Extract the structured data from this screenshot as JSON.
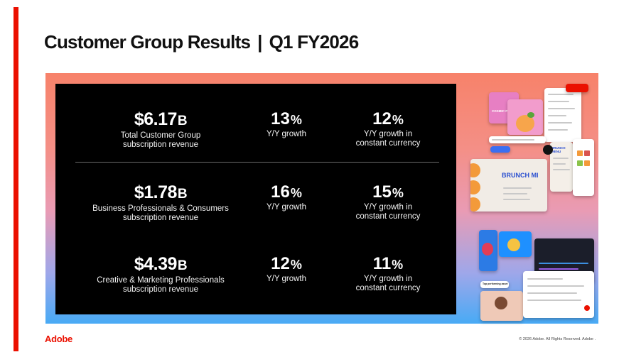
{
  "title": {
    "main": "Customer Group Results",
    "separator": "|",
    "period": "Q1 FY2026"
  },
  "rows": [
    {
      "amount": "$6.17",
      "unit": "B",
      "label_line1": "Total Customer Group",
      "label_line2": "subscription revenue",
      "yy_value": "13",
      "yy_label": "Y/Y growth",
      "cc_value": "12",
      "cc_label_line1": "Y/Y growth in",
      "cc_label_line2": "constant currency"
    },
    {
      "amount": "$1.78",
      "unit": "B",
      "label_line1": "Business Professionals & Consumers",
      "label_line2": "subscription revenue",
      "yy_value": "16",
      "yy_label": "Y/Y growth",
      "cc_value": "15",
      "cc_label_line1": "Y/Y growth in",
      "cc_label_line2": "constant currency"
    },
    {
      "amount": "$4.39",
      "unit": "B",
      "label_line1": "Creative & Marketing Professionals",
      "label_line2": "subscription revenue",
      "yy_value": "12",
      "yy_label": "Y/Y growth",
      "cc_value": "11",
      "cc_label_line1": "Y/Y growth in",
      "cc_label_line2": "constant currency"
    }
  ],
  "percent_symbol": "%",
  "collage": {
    "card_cosmic": "COSMIC PEACH",
    "card_brunch": "BRUNCH MENU",
    "card_brunch_short": "BRUNCH MI",
    "chip_top": "Top performing asset"
  },
  "footer": {
    "logo": "Adobe",
    "copyright": "© 2026 Adobe. All Rights Reserved. Adobe ."
  },
  "colors": {
    "brand_red": "#eb1000",
    "panel_black": "#000000"
  }
}
